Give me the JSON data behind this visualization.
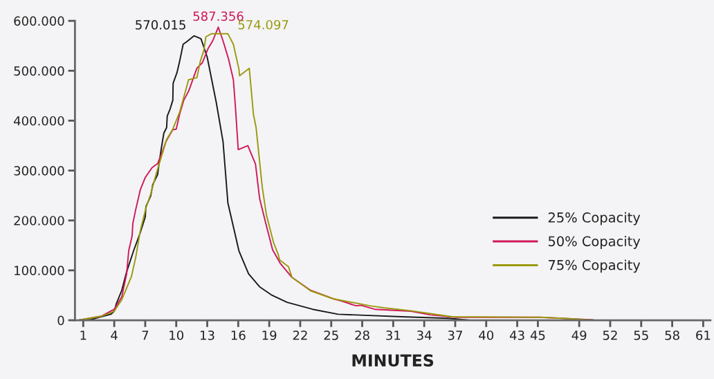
{
  "chart_data": {
    "type": "line",
    "xlabel": "MINUTES",
    "xlim": [
      0.2,
      61.7
    ],
    "xticks": [
      1,
      4,
      7,
      10,
      13,
      16,
      19,
      22,
      25,
      28,
      31,
      34,
      37,
      40,
      43,
      45,
      49,
      52,
      55,
      58,
      61
    ],
    "ylim": [
      0,
      600000
    ],
    "yticks": [
      {
        "value": 0,
        "label": "0"
      },
      {
        "value": 100000,
        "label": "100.000"
      },
      {
        "value": 200000,
        "label": "200.000"
      },
      {
        "value": 300000,
        "label": "300.000"
      },
      {
        "value": 400000,
        "label": "400.000"
      },
      {
        "value": 500000,
        "label": "500.000"
      },
      {
        "value": 600000,
        "label": "600.000"
      }
    ],
    "grid": false,
    "legend": "right",
    "marker": "none",
    "line_style": "solid",
    "series": [
      {
        "name": "25% Copacity",
        "color": "#1a1a1a",
        "x": [
          0.53,
          1.67,
          2.73,
          3.67,
          4.0,
          4.2,
          4.73,
          5.2,
          5.87,
          6.53,
          7.0,
          7.07,
          7.53,
          7.73,
          8.2,
          8.33,
          8.53,
          8.8,
          9.07,
          9.13,
          9.4,
          9.67,
          9.7,
          10.07,
          10.33,
          10.67,
          11.0,
          11.73,
          12.07,
          12.4,
          13.0,
          13.87,
          14.53,
          15.0,
          16.07,
          17.0,
          18.07,
          19.2,
          20.73,
          23.2,
          25.67,
          31.87,
          36.33,
          38.53
        ],
        "values": [
          0,
          1000,
          7000,
          12000,
          18000,
          33000,
          60000,
          97000,
          139000,
          176000,
          207000,
          228000,
          249000,
          272000,
          292000,
          313000,
          341000,
          375000,
          386000,
          409000,
          423000,
          441000,
          475000,
          496000,
          519000,
          553000,
          558000,
          570015,
          567000,
          564000,
          527000,
          437000,
          358000,
          235000,
          139000,
          93000,
          67000,
          51000,
          36000,
          22000,
          12000,
          7000,
          4000,
          0
        ]
      },
      {
        "name": "50% Copacity",
        "color": "#d0185a",
        "x": [
          0.53,
          2.73,
          4.0,
          4.73,
          5.2,
          5.4,
          5.73,
          5.8,
          6.07,
          6.53,
          7.0,
          7.67,
          8.2,
          8.53,
          9.0,
          9.67,
          10.0,
          10.33,
          10.73,
          11.2,
          11.67,
          12.0,
          12.53,
          13.07,
          13.53,
          14.07,
          14.53,
          15.07,
          15.53,
          15.73,
          16.0,
          16.93,
          17.67,
          18.07,
          18.73,
          19.33,
          20.07,
          21.2,
          23.0,
          25.2,
          26.07,
          27.4,
          27.87,
          29.2,
          32.73,
          34.53,
          37.0,
          45.2,
          50.33
        ],
        "values": [
          0,
          8000,
          22000,
          47000,
          93000,
          139000,
          169000,
          194000,
          221000,
          262000,
          286000,
          306000,
          314000,
          331000,
          358000,
          382000,
          383000,
          413000,
          441000,
          459000,
          486000,
          505000,
          516000,
          544000,
          560000,
          587356,
          560000,
          523000,
          482000,
          427000,
          342000,
          350000,
          313000,
          244000,
          189000,
          141000,
          114000,
          86000,
          60000,
          43000,
          38000,
          29000,
          30000,
          22000,
          18000,
          11000,
          6000,
          6000,
          1000
        ]
      },
      {
        "name": "75% Copacity",
        "color": "#9a9a10",
        "x": [
          0.53,
          2.73,
          4.0,
          4.73,
          5.67,
          6.07,
          6.53,
          7.07,
          7.53,
          8.07,
          8.67,
          9.07,
          9.67,
          10.33,
          11.2,
          12.0,
          12.33,
          12.67,
          12.87,
          13.4,
          15.0,
          15.53,
          16.07,
          16.13,
          17.07,
          17.47,
          17.73,
          18.33,
          18.73,
          19.4,
          19.87,
          20.0,
          20.87,
          21.2,
          23.0,
          25.2,
          28.73,
          30.07,
          32.73,
          36.73,
          45.2,
          47.4,
          50.53
        ],
        "values": [
          0,
          8000,
          18000,
          41000,
          88000,
          125000,
          180000,
          225000,
          253000,
          294000,
          335000,
          362000,
          383000,
          417000,
          482000,
          486000,
          519000,
          541000,
          568000,
          574097,
          574097,
          553000,
          503000,
          490000,
          505000,
          413000,
          386000,
          266000,
          211000,
          157000,
          132000,
          121000,
          107000,
          86000,
          59000,
          43000,
          29000,
          25000,
          19000,
          7000,
          6000,
          4000,
          0
        ]
      }
    ],
    "annotations": [
      {
        "text": "570.015",
        "x": 11.73,
        "y": 570015
      },
      {
        "text": "587.356",
        "x": 14.07,
        "y": 587356
      },
      {
        "text": "574.097",
        "x": 15.0,
        "y": 574097
      }
    ]
  }
}
